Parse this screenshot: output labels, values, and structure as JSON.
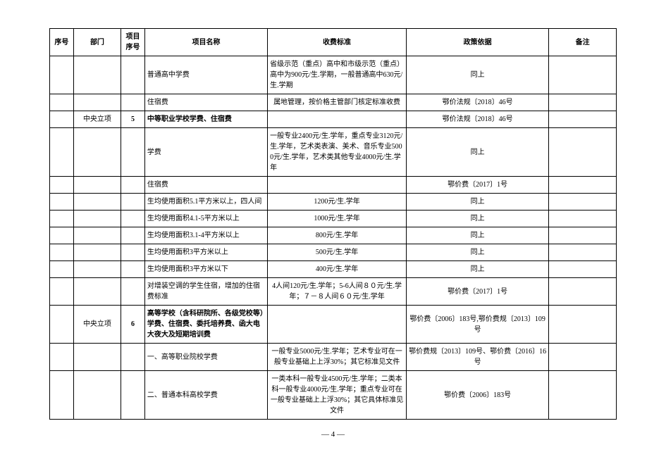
{
  "headers": {
    "h1": "序号",
    "h2": "部门",
    "h3": "项目序号",
    "h4": "项目名称",
    "h5": "收费标准",
    "h6": "政策依据",
    "h7": "备注"
  },
  "rows": {
    "r1": {
      "name": "普通高中学费",
      "fee": "省级示范（重点）高中和市级示范（重点）高中为900元/生.学期，一般普通高中630元/生.学期",
      "policy": "同上"
    },
    "r2": {
      "name": "住宿费",
      "fee": "属地管理，按价格主管部门核定标准收费",
      "policy": "鄂价法规〔2018〕46号"
    },
    "r3": {
      "dept": "中央立项",
      "num": "5",
      "name": "中等职业学校学费、住宿费",
      "policy": "鄂价法规〔2018〕46号"
    },
    "r4": {
      "name": "学费",
      "fee": "一般专业2400元/生.学年，重点专业3120元/生.学年，艺术类表演、美术、音乐专业5000元/生.学年，艺术类其他专业4000元/生.学年",
      "policy": "同上"
    },
    "r5": {
      "name": "住宿费",
      "policy": "鄂价费〔2017〕1号"
    },
    "r6": {
      "name": "生均使用面积5.1平方米以上，四人间",
      "fee": "1200元/生.学年",
      "policy": "同上"
    },
    "r7": {
      "name": "生均使用面积4.1-5平方米以上",
      "fee": "1000元/生.学年",
      "policy": "同上"
    },
    "r8": {
      "name": "生均使用面积3.1-4平方米以上",
      "fee": "800元/生.学年",
      "policy": "同上"
    },
    "r9": {
      "name": "生均使用面积3平方米以上",
      "fee": "500元/生.学年",
      "policy": "同上"
    },
    "r10": {
      "name": "生均使用面积3平方米以下",
      "fee": "400元/生.学年",
      "policy": "同上"
    },
    "r11": {
      "name": "对增装空调的学生住宿，增加的住宿费标准",
      "fee": "4人间120元/生.学年；5-6人间８０元/生.学年；７－８人间６０元/生.学年",
      "policy": "鄂价费〔2017〕1号"
    },
    "r12": {
      "dept": "中央立项",
      "num": "6",
      "name": "高等学校（含科研院所、各级党校等）学费、住宿费、委托培养费、函大电大夜大及短期培训费",
      "policy": "鄂价费〔2006〕183号,鄂价费规〔2013〕109号"
    },
    "r13": {
      "name": "一、高等职业院校学费",
      "fee": "一般专业5000元/生.学年；艺术专业可在一般专业基础上上浮30%；其它标准见文件",
      "policy": "鄂价费规〔2013〕109号、鄂价费〔2016〕16号"
    },
    "r14": {
      "name": "二、普通本科高校学费",
      "fee": "一类本科一般专业4500元/生.学年；二类本科一般专业4000元/生.学年；重点专业可在一般专业基础上上浮30%；其它具体标准见文件",
      "policy": "鄂价费〔2006〕183号"
    }
  },
  "footer": {
    "page": "— 4 —"
  }
}
